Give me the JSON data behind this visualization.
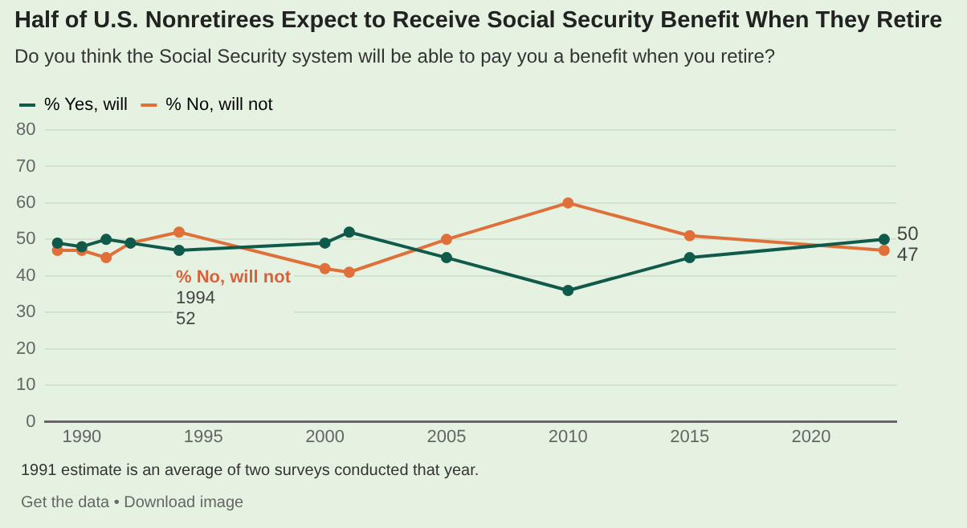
{
  "chart_data": {
    "type": "line",
    "title": "Half of U.S. Nonretirees Expect to Receive Social Security Benefit When They Retire",
    "subtitle": "Do you think the Social Security system will be able to pay you a benefit when you retire?",
    "x": [
      1989,
      1990,
      1991,
      1992,
      1994,
      2000,
      2001,
      2005,
      2010,
      2015,
      2023
    ],
    "series": [
      {
        "name": "% Yes, will",
        "color": "#0f5a4a",
        "values": [
          49,
          48,
          50,
          49,
          47,
          49,
          52,
          45,
          36,
          45,
          50
        ],
        "value_labels": [
          null,
          null,
          null,
          null,
          null,
          null,
          null,
          null,
          null,
          null,
          "50"
        ]
      },
      {
        "name": "% No, will not",
        "color": "#e0703a",
        "values": [
          47,
          47,
          45,
          49,
          52,
          42,
          41,
          50,
          60,
          51,
          47
        ],
        "value_labels": [
          null,
          null,
          null,
          null,
          null,
          null,
          null,
          null,
          null,
          null,
          "47"
        ]
      }
    ],
    "xlim": [
      1988.5,
      2023.5
    ],
    "xticks": [
      1990,
      1995,
      2000,
      2005,
      2010,
      2015,
      2020
    ],
    "ylim": [
      0,
      80
    ],
    "yticks": [
      0,
      10,
      20,
      30,
      40,
      50,
      60,
      70,
      80
    ],
    "grid": "y",
    "legend": "top left",
    "marker": "circle",
    "line_style": "solid",
    "annotations": [
      {
        "text": "% No, will not\n1994\n52",
        "x": 1994,
        "y": 52
      },
      "1991 estimate is an average of two surveys conducted that year.",
      "Get the data • Download image"
    ]
  }
}
